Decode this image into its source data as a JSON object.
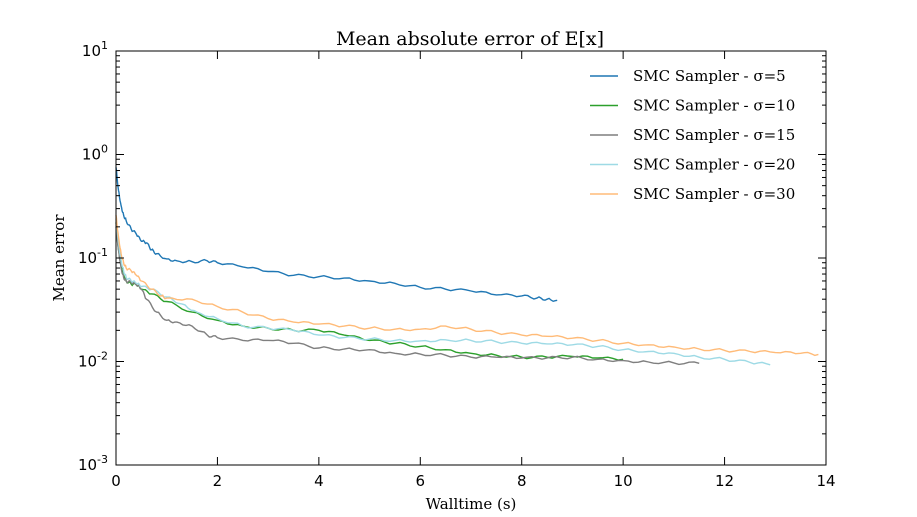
{
  "chart_data": {
    "type": "line",
    "title": "Mean absolute error of E[x]",
    "xlabel": "Walltime (s)",
    "ylabel": "Mean error",
    "xlim": [
      0,
      14
    ],
    "ylim": [
      0.001,
      10
    ],
    "yscale": "log",
    "x_ticks": [
      "0",
      "2",
      "4",
      "6",
      "8",
      "10",
      "12",
      "14"
    ],
    "y_ticks": [
      {
        "base": "10",
        "exp": "-3"
      },
      {
        "base": "10",
        "exp": "-2"
      },
      {
        "base": "10",
        "exp": "-1"
      },
      {
        "base": "10",
        "exp": "0"
      },
      {
        "base": "10",
        "exp": "1"
      }
    ],
    "grid": false,
    "legend_position": "top-right",
    "series": [
      {
        "name": "SMC Sampler - σ=5",
        "color": "#1f77b4",
        "x": [
          0.0,
          0.05,
          0.1,
          0.15,
          0.2,
          0.3,
          0.4,
          0.5,
          0.6,
          0.7,
          0.8,
          1.0,
          1.2,
          1.5,
          1.8,
          2.0,
          2.5,
          3.0,
          3.5,
          4.0,
          4.5,
          5.0,
          5.5,
          6.0,
          6.5,
          7.0,
          7.5,
          8.0,
          8.3,
          8.5,
          8.7
        ],
        "y": [
          0.75,
          0.45,
          0.32,
          0.26,
          0.23,
          0.19,
          0.17,
          0.145,
          0.14,
          0.12,
          0.11,
          0.098,
          0.094,
          0.092,
          0.094,
          0.09,
          0.082,
          0.074,
          0.068,
          0.066,
          0.064,
          0.06,
          0.057,
          0.052,
          0.05,
          0.048,
          0.044,
          0.043,
          0.041,
          0.04,
          0.039
        ]
      },
      {
        "name": "SMC Sampler - σ=10",
        "color": "#2ca02c",
        "x": [
          0.0,
          0.05,
          0.1,
          0.15,
          0.2,
          0.3,
          0.4,
          0.5,
          0.7,
          1.0,
          1.5,
          2.0,
          2.5,
          3.0,
          3.5,
          4.0,
          4.5,
          5.0,
          5.5,
          6.0,
          6.5,
          7.0,
          7.5,
          8.0,
          8.5,
          9.0,
          9.5,
          10.0
        ],
        "y": [
          0.22,
          0.12,
          0.085,
          0.07,
          0.06,
          0.056,
          0.055,
          0.05,
          0.045,
          0.038,
          0.03,
          0.025,
          0.022,
          0.021,
          0.02,
          0.02,
          0.018,
          0.016,
          0.015,
          0.014,
          0.013,
          0.012,
          0.0115,
          0.011,
          0.011,
          0.0112,
          0.0108,
          0.0105
        ]
      },
      {
        "name": "SMC Sampler - σ=15",
        "color": "#7f7f7f",
        "x": [
          0.0,
          0.05,
          0.1,
          0.15,
          0.2,
          0.3,
          0.4,
          0.5,
          0.6,
          0.8,
          1.0,
          1.2,
          1.5,
          1.8,
          2.0,
          2.5,
          3.0,
          3.5,
          4.0,
          4.5,
          5.0,
          5.5,
          6.0,
          6.5,
          7.0,
          7.5,
          8.0,
          8.5,
          9.0,
          9.5,
          10.0,
          10.5,
          11.0,
          11.5
        ],
        "y": [
          0.2,
          0.12,
          0.08,
          0.065,
          0.06,
          0.058,
          0.055,
          0.05,
          0.04,
          0.03,
          0.025,
          0.024,
          0.022,
          0.018,
          0.017,
          0.016,
          0.016,
          0.015,
          0.0135,
          0.0132,
          0.013,
          0.012,
          0.0118,
          0.0115,
          0.011,
          0.011,
          0.0108,
          0.0108,
          0.011,
          0.0105,
          0.0102,
          0.0099,
          0.0097,
          0.0096
        ]
      },
      {
        "name": "SMC Sampler - σ=20",
        "color": "#9edae5",
        "x": [
          0.0,
          0.05,
          0.1,
          0.15,
          0.2,
          0.3,
          0.4,
          0.5,
          0.7,
          1.0,
          1.3,
          1.6,
          2.0,
          2.5,
          3.0,
          3.5,
          4.0,
          4.5,
          5.0,
          5.5,
          6.0,
          6.5,
          7.0,
          7.5,
          8.0,
          8.5,
          9.0,
          9.5,
          10.0,
          10.5,
          11.0,
          11.5,
          12.0,
          12.5,
          12.9
        ],
        "y": [
          0.24,
          0.14,
          0.095,
          0.075,
          0.065,
          0.06,
          0.057,
          0.053,
          0.05,
          0.042,
          0.036,
          0.03,
          0.026,
          0.022,
          0.021,
          0.02,
          0.018,
          0.017,
          0.0165,
          0.016,
          0.0158,
          0.0162,
          0.016,
          0.0155,
          0.015,
          0.0148,
          0.0145,
          0.014,
          0.013,
          0.0125,
          0.012,
          0.011,
          0.0105,
          0.0098,
          0.0093
        ]
      },
      {
        "name": "SMC Sampler - σ=30",
        "color": "#ffbb78",
        "x": [
          0.0,
          0.05,
          0.1,
          0.15,
          0.2,
          0.3,
          0.4,
          0.5,
          0.7,
          0.9,
          1.0,
          1.5,
          2.0,
          2.5,
          3.0,
          3.5,
          4.0,
          4.5,
          5.0,
          5.5,
          6.0,
          6.5,
          7.0,
          7.5,
          8.0,
          8.5,
          9.0,
          9.5,
          10.0,
          10.5,
          11.0,
          11.5,
          12.0,
          12.5,
          13.0,
          13.5,
          13.85
        ],
        "y": [
          0.26,
          0.16,
          0.11,
          0.09,
          0.08,
          0.075,
          0.068,
          0.06,
          0.05,
          0.043,
          0.041,
          0.04,
          0.034,
          0.03,
          0.026,
          0.024,
          0.023,
          0.022,
          0.021,
          0.0205,
          0.0205,
          0.022,
          0.0205,
          0.019,
          0.018,
          0.0175,
          0.0168,
          0.016,
          0.015,
          0.0145,
          0.0138,
          0.0132,
          0.0128,
          0.0125,
          0.0122,
          0.012,
          0.0117
        ]
      }
    ]
  }
}
